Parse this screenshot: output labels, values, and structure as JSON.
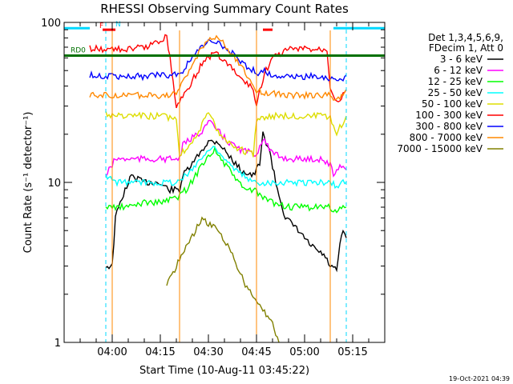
{
  "chart_data": {
    "type": "line",
    "title": "RHESSI Observing Summary Count Rates",
    "xlabel": "Start Time (10-Aug-11 03:45:22)",
    "ylabel": "Count Rate (s⁻¹ detector⁻¹)",
    "y_scale": "log",
    "ylim": [
      1,
      100
    ],
    "xlim": [
      "03:45",
      "05:25"
    ],
    "x_ticks": [
      "04:00",
      "04:15",
      "04:30",
      "04:45",
      "05:00",
      "05:15"
    ],
    "y_ticks": [
      "1",
      "10",
      "100"
    ],
    "legend_position": "right",
    "legend_header": [
      "Det 1,3,4,5,6,9,",
      "FDecim 1, Att 0"
    ],
    "footer_date": "19-Oct-2021 04:39",
    "state_flags": [
      {
        "label": "RD0",
        "color": "#007000",
        "value": 62
      },
      {
        "label": "F",
        "color": "#ff0000",
        "value": 90
      },
      {
        "label": "N",
        "color": "#00d8ff",
        "value": 92
      }
    ],
    "series": [
      {
        "name": "3 - 6 keV",
        "color": "#000000",
        "points": [
          [
            "03:58",
            3
          ],
          [
            "04:00",
            3
          ],
          [
            "04:01",
            6
          ],
          [
            "04:03",
            8
          ],
          [
            "04:06",
            11
          ],
          [
            "04:10",
            10
          ],
          [
            "04:14",
            10
          ],
          [
            "04:18",
            9
          ],
          [
            "04:21",
            9
          ],
          [
            "04:22",
            11
          ],
          [
            "04:25",
            13
          ],
          [
            "04:28",
            16
          ],
          [
            "04:30",
            18
          ],
          [
            "04:33",
            18
          ],
          [
            "04:36",
            15
          ],
          [
            "04:40",
            12
          ],
          [
            "04:44",
            11
          ],
          [
            "04:46",
            13
          ],
          [
            "04:47",
            20
          ],
          [
            "04:49",
            16
          ],
          [
            "04:51",
            10
          ],
          [
            "04:54",
            6
          ],
          [
            "04:58",
            5
          ],
          [
            "05:02",
            4
          ],
          [
            "05:06",
            3.5
          ],
          [
            "05:08",
            3
          ],
          [
            "05:10",
            2.8
          ],
          [
            "05:11",
            4
          ],
          [
            "05:12",
            5
          ],
          [
            "05:13",
            4.5
          ]
        ]
      },
      {
        "name": "6 - 12 keV",
        "color": "#ff00ff",
        "points": [
          [
            "03:58",
            11
          ],
          [
            "04:01",
            14
          ],
          [
            "04:05",
            14
          ],
          [
            "04:10",
            14
          ],
          [
            "04:15",
            14
          ],
          [
            "04:21",
            14
          ],
          [
            "04:22",
            17
          ],
          [
            "04:25",
            19
          ],
          [
            "04:28",
            21
          ],
          [
            "04:30",
            24
          ],
          [
            "04:33",
            21
          ],
          [
            "04:36",
            18
          ],
          [
            "04:40",
            16
          ],
          [
            "04:45",
            15
          ],
          [
            "04:47",
            19
          ],
          [
            "04:50",
            15
          ],
          [
            "04:55",
            14
          ],
          [
            "05:00",
            14
          ],
          [
            "05:05",
            14
          ],
          [
            "05:08",
            13
          ],
          [
            "05:09",
            11
          ],
          [
            "05:11",
            13
          ],
          [
            "05:13",
            12
          ]
        ]
      },
      {
        "name": "12 - 25 keV",
        "color": "#00ff00",
        "points": [
          [
            "03:58",
            7
          ],
          [
            "04:01",
            7
          ],
          [
            "04:05",
            7
          ],
          [
            "04:10",
            7.5
          ],
          [
            "04:15",
            7.5
          ],
          [
            "04:20",
            8
          ],
          [
            "04:23",
            9
          ],
          [
            "04:26",
            11
          ],
          [
            "04:29",
            14
          ],
          [
            "04:32",
            16
          ],
          [
            "04:35",
            13
          ],
          [
            "04:38",
            11
          ],
          [
            "04:41",
            9
          ],
          [
            "04:44",
            9
          ],
          [
            "04:47",
            8
          ],
          [
            "04:50",
            7.5
          ],
          [
            "04:55",
            7
          ],
          [
            "05:00",
            7
          ],
          [
            "05:05",
            7
          ],
          [
            "05:08",
            7
          ],
          [
            "05:10",
            6.5
          ],
          [
            "05:12",
            7
          ],
          [
            "05:13",
            7
          ]
        ]
      },
      {
        "name": "25 - 50 keV",
        "color": "#00ffff",
        "points": [
          [
            "03:58",
            11
          ],
          [
            "04:01",
            10
          ],
          [
            "04:05",
            10
          ],
          [
            "04:10",
            10
          ],
          [
            "04:15",
            10
          ],
          [
            "04:20",
            10
          ],
          [
            "04:23",
            11
          ],
          [
            "04:26",
            13
          ],
          [
            "04:29",
            15
          ],
          [
            "04:32",
            17
          ],
          [
            "04:35",
            14
          ],
          [
            "04:38",
            12
          ],
          [
            "04:41",
            11
          ],
          [
            "04:44",
            10
          ],
          [
            "04:47",
            10
          ],
          [
            "04:50",
            10
          ],
          [
            "04:55",
            10
          ],
          [
            "05:00",
            10
          ],
          [
            "05:05",
            10
          ],
          [
            "05:08",
            10
          ],
          [
            "05:10",
            9.5
          ],
          [
            "05:12",
            10
          ],
          [
            "05:13",
            10
          ]
        ]
      },
      {
        "name": "50 - 100 keV",
        "color": "#dddd00",
        "points": [
          [
            "03:58",
            27
          ],
          [
            "04:01",
            26
          ],
          [
            "04:05",
            26
          ],
          [
            "04:10",
            26
          ],
          [
            "04:15",
            26
          ],
          [
            "04:20",
            25
          ],
          [
            "04:21",
            15
          ],
          [
            "04:24",
            17
          ],
          [
            "04:27",
            21
          ],
          [
            "04:30",
            27
          ],
          [
            "04:33",
            21
          ],
          [
            "04:36",
            18
          ],
          [
            "04:40",
            16
          ],
          [
            "04:44",
            15
          ],
          [
            "04:45",
            25
          ],
          [
            "04:50",
            26
          ],
          [
            "04:55",
            26
          ],
          [
            "05:00",
            26
          ],
          [
            "05:05",
            26
          ],
          [
            "05:08",
            25
          ],
          [
            "05:10",
            20
          ],
          [
            "05:12",
            24
          ],
          [
            "05:13",
            26
          ]
        ]
      },
      {
        "name": "100 - 300 keV",
        "color": "#ff0000",
        "points": [
          [
            "03:53",
            69
          ],
          [
            "03:58",
            68
          ],
          [
            "04:02",
            68
          ],
          [
            "04:06",
            68
          ],
          [
            "04:10",
            70
          ],
          [
            "04:14",
            75
          ],
          [
            "04:16",
            80
          ],
          [
            "04:17",
            83
          ],
          [
            "04:18",
            60
          ],
          [
            "04:20",
            30
          ],
          [
            "04:24",
            40
          ],
          [
            "04:28",
            55
          ],
          [
            "04:32",
            65
          ],
          [
            "04:36",
            55
          ],
          [
            "04:40",
            45
          ],
          [
            "04:44",
            38
          ],
          [
            "04:45",
            30
          ],
          [
            "04:46",
            38
          ],
          [
            "04:48",
            50
          ],
          [
            "04:50",
            60
          ],
          [
            "04:55",
            68
          ],
          [
            "05:00",
            68
          ],
          [
            "05:05",
            68
          ],
          [
            "05:07",
            68
          ],
          [
            "05:08",
            40
          ],
          [
            "05:10",
            32
          ],
          [
            "05:12",
            35
          ],
          [
            "05:13",
            38
          ]
        ]
      },
      {
        "name": "300 - 800 keV",
        "color": "#0000ff",
        "points": [
          [
            "03:53",
            47
          ],
          [
            "03:58",
            46
          ],
          [
            "04:05",
            46
          ],
          [
            "04:10",
            46
          ],
          [
            "04:15",
            47
          ],
          [
            "04:20",
            47
          ],
          [
            "04:22",
            50
          ],
          [
            "04:26",
            65
          ],
          [
            "04:30",
            75
          ],
          [
            "04:33",
            75
          ],
          [
            "04:37",
            65
          ],
          [
            "04:41",
            55
          ],
          [
            "04:44",
            50
          ],
          [
            "04:45",
            48
          ],
          [
            "04:47",
            50
          ],
          [
            "04:50",
            47
          ],
          [
            "04:55",
            46
          ],
          [
            "05:00",
            46
          ],
          [
            "05:05",
            46
          ],
          [
            "05:08",
            45
          ],
          [
            "05:10",
            43
          ],
          [
            "05:12",
            45
          ],
          [
            "05:13",
            47
          ]
        ]
      },
      {
        "name": "800 - 7000 keV",
        "color": "#ff8800",
        "points": [
          [
            "03:53",
            35
          ],
          [
            "03:58",
            35
          ],
          [
            "04:05",
            35
          ],
          [
            "04:10",
            35
          ],
          [
            "04:15",
            35
          ],
          [
            "04:20",
            36
          ],
          [
            "04:23",
            45
          ],
          [
            "04:27",
            65
          ],
          [
            "04:30",
            80
          ],
          [
            "04:33",
            80
          ],
          [
            "04:37",
            65
          ],
          [
            "04:41",
            50
          ],
          [
            "04:44",
            40
          ],
          [
            "04:45",
            37
          ],
          [
            "04:50",
            36
          ],
          [
            "04:55",
            35
          ],
          [
            "05:00",
            35
          ],
          [
            "05:05",
            35
          ],
          [
            "05:08",
            35
          ],
          [
            "05:10",
            33
          ],
          [
            "05:12",
            36
          ],
          [
            "05:13",
            38
          ]
        ]
      },
      {
        "name": "7000 - 15000 keV",
        "color": "#808000",
        "points": [
          [
            "04:17",
            2.3
          ],
          [
            "04:20",
            3
          ],
          [
            "04:23",
            4
          ],
          [
            "04:26",
            5
          ],
          [
            "04:28",
            6
          ],
          [
            "04:30",
            5.5
          ],
          [
            "04:33",
            5
          ],
          [
            "04:36",
            4
          ],
          [
            "04:39",
            3
          ],
          [
            "04:42",
            2.2
          ],
          [
            "04:45",
            1.8
          ],
          [
            "04:48",
            1.5
          ],
          [
            "04:50",
            1.3
          ],
          [
            "04:52",
            1
          ]
        ]
      }
    ]
  }
}
